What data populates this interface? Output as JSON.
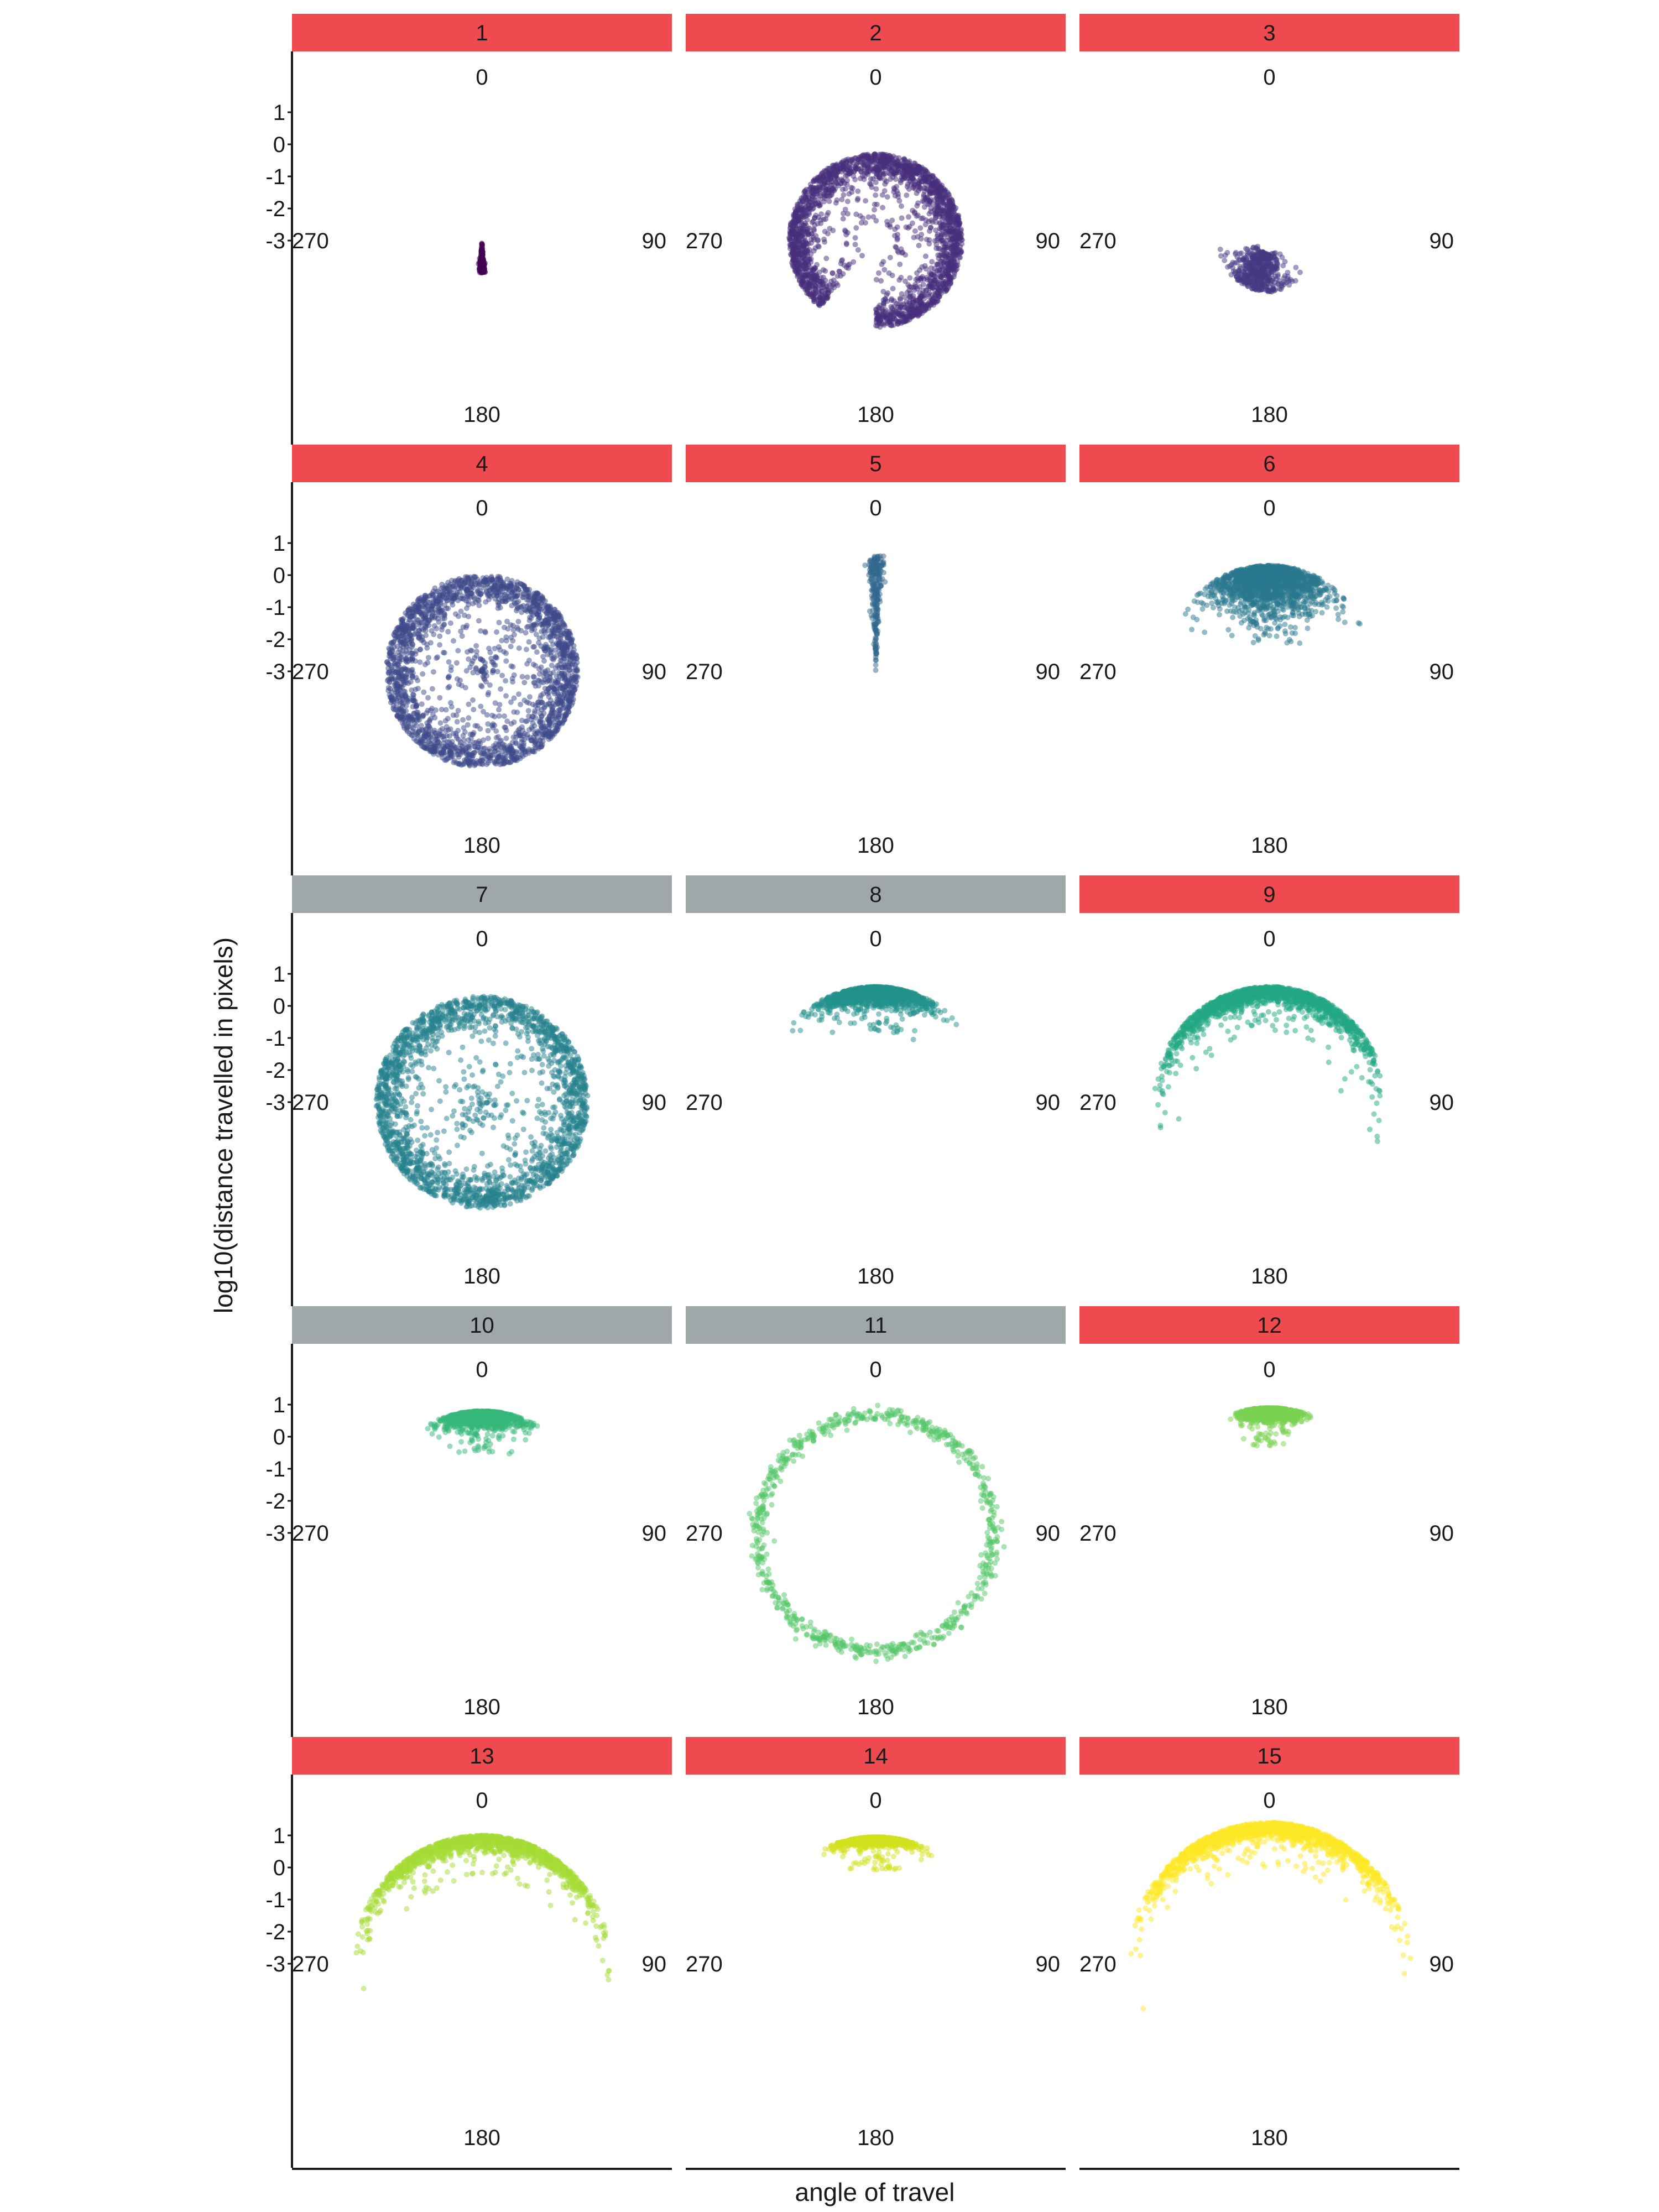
{
  "chart_data": {
    "type": "scatter",
    "projection": "polar",
    "facet_layout": {
      "rows": 5,
      "cols": 3
    },
    "xlabel": "angle of travel",
    "ylabel": "log10(distance travelled in pixels)",
    "theta_breaks": [
      "0",
      "90",
      "180",
      "270"
    ],
    "r_ticks": [
      "1",
      "0",
      "-1",
      "-2",
      "-3"
    ],
    "r_scale": "log10",
    "r_range": [
      -3,
      1.7
    ],
    "strip_colors": {
      "red": "#ef4a4f",
      "gray": "#9fa7a8"
    },
    "point_alpha": 0.5,
    "panels": [
      {
        "label": "1",
        "strip": "red",
        "color": "#440154",
        "shape": "vertical_line",
        "r_min": -3.0,
        "r_max": -2.0,
        "angle_center": 180,
        "angle_spread": 3
      },
      {
        "label": "2",
        "strip": "red",
        "color": "#472d7b",
        "shape": "ring_gap",
        "r_min": -1.2,
        "r_max": -0.3,
        "gap_center": 200,
        "gap_width": 40
      },
      {
        "label": "3",
        "strip": "red",
        "color": "#443983",
        "shape": "blob",
        "r_min": -2.6,
        "r_max": -1.4,
        "angle_center": 200,
        "angle_spread": 45
      },
      {
        "label": "4",
        "strip": "red",
        "color": "#3e4a89",
        "shape": "ring",
        "r_min": -1.1,
        "r_max": 0.0
      },
      {
        "label": "5",
        "strip": "red",
        "color": "#31688e",
        "shape": "vertical_line",
        "r_min": -3.0,
        "r_max": 0.6,
        "angle_center": 0,
        "angle_spread": 2
      },
      {
        "label": "6",
        "strip": "red",
        "color": "#2a788e",
        "shape": "arc_top",
        "r_min": -1.2,
        "r_max": 0.3,
        "angle_center": 0,
        "angle_spread": 40
      },
      {
        "label": "7",
        "strip": "gray",
        "color": "#26828e",
        "shape": "ring",
        "r_min": -0.8,
        "r_max": 0.3
      },
      {
        "label": "8",
        "strip": "gray",
        "color": "#21918c",
        "shape": "arc_top",
        "r_min": 0.0,
        "r_max": 0.6,
        "angle_center": 0,
        "angle_spread": 30
      },
      {
        "label": "9",
        "strip": "red",
        "color": "#22a884",
        "shape": "arc_top",
        "r_min": 0.0,
        "r_max": 0.6,
        "angle_center": 0,
        "angle_spread": 75
      },
      {
        "label": "10",
        "strip": "gray",
        "color": "#35b779",
        "shape": "arc_top",
        "r_min": 0.3,
        "r_max": 0.8,
        "angle_center": 0,
        "angle_spread": 20
      },
      {
        "label": "11",
        "strip": "gray",
        "color": "#54c568",
        "shape": "ring_sparse",
        "r_min": 0.5,
        "r_max": 0.85
      },
      {
        "label": "12",
        "strip": "red",
        "color": "#7ad151",
        "shape": "arc_top",
        "r_min": 0.5,
        "r_max": 0.9,
        "angle_center": 0,
        "angle_spread": 15
      },
      {
        "label": "13",
        "strip": "red",
        "color": "#a5db36",
        "shape": "arc_top",
        "r_min": 0.5,
        "r_max": 1.0,
        "angle_center": 0,
        "angle_spread": 70
      },
      {
        "label": "14",
        "strip": "red",
        "color": "#d2e21b",
        "shape": "arc_top",
        "r_min": 0.7,
        "r_max": 0.95,
        "angle_center": 0,
        "angle_spread": 18
      },
      {
        "label": "15",
        "strip": "red",
        "color": "#fde725",
        "shape": "arc_top",
        "r_min": 0.8,
        "r_max": 1.4,
        "angle_center": 0,
        "angle_spread": 65
      }
    ]
  }
}
